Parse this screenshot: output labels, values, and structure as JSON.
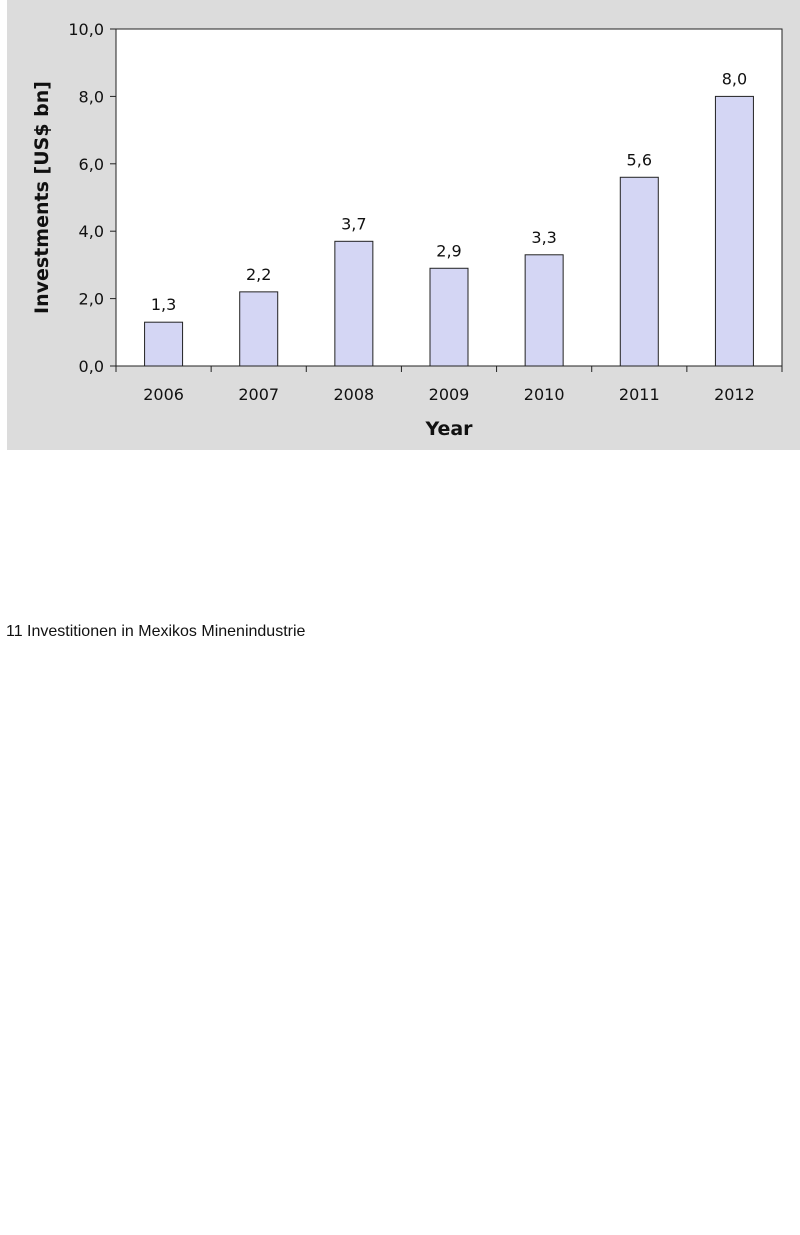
{
  "chart_data": {
    "type": "bar",
    "categories": [
      "2006",
      "2007",
      "2008",
      "2009",
      "2010",
      "2011",
      "2012"
    ],
    "values": [
      1.3,
      2.2,
      3.7,
      2.9,
      3.3,
      5.6,
      8.0
    ],
    "data_labels": [
      "1,3",
      "2,2",
      "3,7",
      "2,9",
      "3,3",
      "5,6",
      "8,0"
    ],
    "xlabel": "Year",
    "ylabel": "Investments [US$ bn]",
    "ylim": [
      0,
      10
    ],
    "yticks": [
      0,
      2,
      4,
      6,
      8,
      10
    ],
    "ytick_labels": [
      "0,0",
      "2,0",
      "4,0",
      "6,0",
      "8,0",
      "10,0"
    ],
    "bar_color": "#d4d6f4",
    "grid": false,
    "legend": "none"
  },
  "caption": "11 Investitionen in Mexikos Minenindustrie"
}
